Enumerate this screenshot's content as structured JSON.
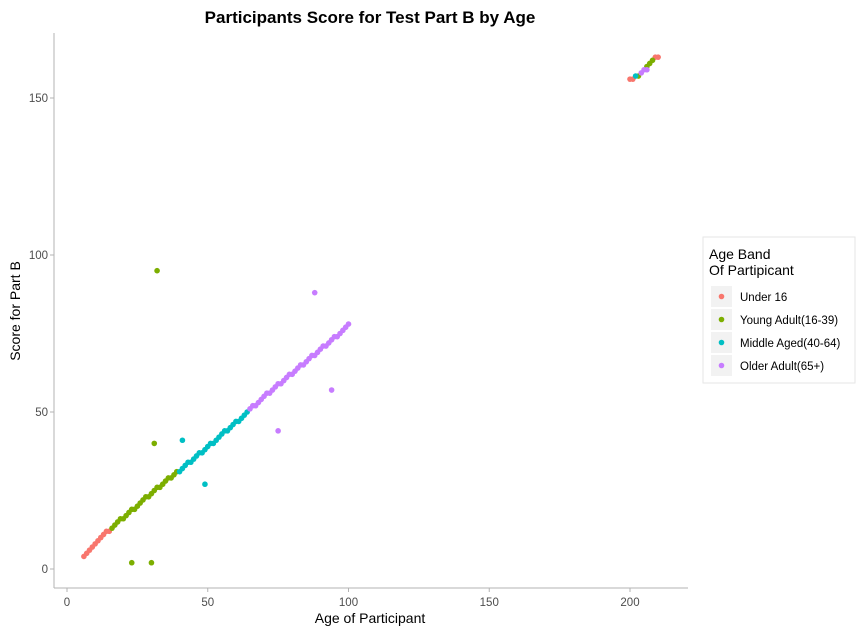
{
  "chart_data": {
    "type": "scatter",
    "title": "Participants Score for Test Part B by Age",
    "xlabel": "Age of Participant",
    "ylabel": "Score for Part B",
    "xlim": [
      0,
      220
    ],
    "ylim": [
      0,
      170
    ],
    "x_ticks": [
      0,
      50,
      100,
      150,
      200
    ],
    "y_ticks": [
      0,
      50,
      100,
      150
    ],
    "grid": false,
    "legend": {
      "title_lines": [
        "Age Band",
        "Of Partipicant"
      ],
      "placement": "right"
    },
    "series": [
      {
        "name": "Under 16",
        "color": "#F8766D",
        "points": [
          [
            6,
            4
          ],
          [
            7,
            5
          ],
          [
            8,
            6
          ],
          [
            9,
            7
          ],
          [
            10,
            8
          ],
          [
            11,
            9
          ],
          [
            12,
            10
          ],
          [
            13,
            11
          ],
          [
            14,
            12
          ],
          [
            15,
            12
          ],
          [
            200,
            156
          ],
          [
            201,
            156
          ],
          [
            209,
            163
          ],
          [
            210,
            163
          ]
        ]
      },
      {
        "name": "Young Adult(16-39)",
        "color": "#7CAE00",
        "points": [
          [
            16,
            13
          ],
          [
            17,
            14
          ],
          [
            18,
            15
          ],
          [
            19,
            16
          ],
          [
            20,
            16
          ],
          [
            21,
            17
          ],
          [
            22,
            18
          ],
          [
            23,
            19
          ],
          [
            24,
            19
          ],
          [
            25,
            20
          ],
          [
            26,
            21
          ],
          [
            27,
            22
          ],
          [
            28,
            23
          ],
          [
            29,
            23
          ],
          [
            30,
            24
          ],
          [
            31,
            25
          ],
          [
            32,
            26
          ],
          [
            33,
            26
          ],
          [
            34,
            27
          ],
          [
            35,
            28
          ],
          [
            36,
            29
          ],
          [
            37,
            29
          ],
          [
            38,
            30
          ],
          [
            39,
            31
          ],
          [
            32,
            95
          ],
          [
            31,
            40
          ],
          [
            23,
            2
          ],
          [
            30,
            2
          ],
          [
            203,
            157
          ],
          [
            206,
            160
          ],
          [
            207,
            161
          ],
          [
            208,
            162
          ]
        ]
      },
      {
        "name": "Middle Aged(40-64)",
        "color": "#00BFC4",
        "points": [
          [
            40,
            31
          ],
          [
            41,
            32
          ],
          [
            42,
            33
          ],
          [
            43,
            34
          ],
          [
            44,
            34
          ],
          [
            45,
            35
          ],
          [
            46,
            36
          ],
          [
            47,
            37
          ],
          [
            48,
            37
          ],
          [
            49,
            38
          ],
          [
            50,
            39
          ],
          [
            51,
            40
          ],
          [
            52,
            40
          ],
          [
            53,
            41
          ],
          [
            54,
            42
          ],
          [
            55,
            43
          ],
          [
            56,
            44
          ],
          [
            57,
            44
          ],
          [
            58,
            45
          ],
          [
            59,
            46
          ],
          [
            60,
            47
          ],
          [
            61,
            47
          ],
          [
            62,
            48
          ],
          [
            63,
            49
          ],
          [
            64,
            50
          ],
          [
            41,
            41
          ],
          [
            49,
            27
          ],
          [
            202,
            157
          ]
        ]
      },
      {
        "name": "Older Adult(65+)",
        "color": "#C77CFF",
        "points": [
          [
            65,
            51
          ],
          [
            66,
            52
          ],
          [
            67,
            52
          ],
          [
            68,
            53
          ],
          [
            69,
            54
          ],
          [
            70,
            55
          ],
          [
            71,
            56
          ],
          [
            72,
            56
          ],
          [
            73,
            57
          ],
          [
            74,
            58
          ],
          [
            75,
            59
          ],
          [
            76,
            59
          ],
          [
            77,
            60
          ],
          [
            78,
            61
          ],
          [
            79,
            62
          ],
          [
            80,
            62
          ],
          [
            81,
            63
          ],
          [
            82,
            64
          ],
          [
            83,
            65
          ],
          [
            84,
            65
          ],
          [
            85,
            66
          ],
          [
            86,
            67
          ],
          [
            87,
            68
          ],
          [
            88,
            68
          ],
          [
            89,
            69
          ],
          [
            90,
            70
          ],
          [
            91,
            71
          ],
          [
            92,
            71
          ],
          [
            93,
            72
          ],
          [
            94,
            73
          ],
          [
            95,
            74
          ],
          [
            96,
            74
          ],
          [
            97,
            75
          ],
          [
            98,
            76
          ],
          [
            99,
            77
          ],
          [
            100,
            78
          ],
          [
            88,
            88
          ],
          [
            94,
            57
          ],
          [
            75,
            44
          ],
          [
            204,
            158
          ],
          [
            205,
            159
          ],
          [
            206,
            159
          ]
        ]
      }
    ]
  }
}
